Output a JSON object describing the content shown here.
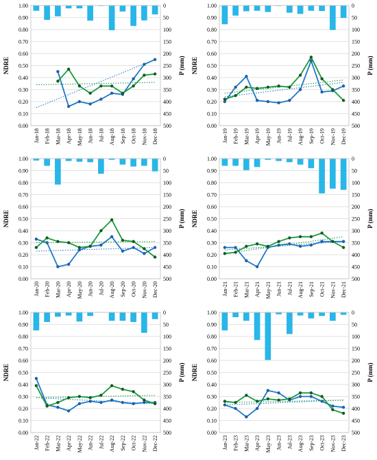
{
  "chart_data": [
    {
      "type": "bar+line",
      "categories": [
        "Jan-18",
        "Feb-18",
        "Mar-18",
        "Apr-18",
        "May-18",
        "Jun-18",
        "Jul-18",
        "Aug-18",
        "Sep-18",
        "Oct-18",
        "Nov-18",
        "Dec-18"
      ],
      "ylabel": "NDRE",
      "ylim": [
        0,
        1
      ],
      "yticks": [
        "0.00",
        "0.10",
        "0.20",
        "0.30",
        "0.40",
        "0.50",
        "0.60",
        "0.70",
        "0.80",
        "0.90",
        "1.00"
      ],
      "y2label": "P (mm)",
      "y2lim": [
        0,
        500
      ],
      "y2_inverted": true,
      "y2ticks": [
        "0",
        "50",
        "100",
        "150",
        "200",
        "250",
        "300",
        "350",
        "400",
        "450",
        "500"
      ],
      "precip_color": "#29b6e8",
      "precipitation": [
        22,
        60,
        45,
        12,
        12,
        63,
        2,
        103,
        25,
        85,
        62,
        37
      ],
      "series": [
        {
          "color": "#1f77c8",
          "values": [
            null,
            null,
            0.45,
            0.16,
            0.2,
            0.18,
            0.22,
            0.27,
            0.26,
            0.39,
            0.51,
            0.55
          ],
          "trend": [
            0.15,
            0.55
          ]
        },
        {
          "color": "#1a9a3a",
          "values": [
            null,
            null,
            0.37,
            0.47,
            0.33,
            0.27,
            0.33,
            0.33,
            0.27,
            0.33,
            0.42,
            0.43
          ],
          "trend": [
            0.34,
            0.36
          ]
        }
      ]
    },
    {
      "type": "bar+line",
      "categories": [
        "Jan-19",
        "Feb-19",
        "Mar-19",
        "Apr-19",
        "May-19",
        "Jun-19",
        "Jul-19",
        "Aug-19",
        "Sep-19",
        "Oct-19",
        "Nov-19",
        "Dec-19"
      ],
      "ylabel": "NDRE",
      "ylim": [
        0,
        1
      ],
      "yticks": [
        "0.00",
        "0.10",
        "0.20",
        "0.30",
        "0.40",
        "0.50",
        "0.60",
        "0.70",
        "0.80",
        "0.90",
        "1.00"
      ],
      "y2label": "P (mm)",
      "y2lim": [
        0,
        500
      ],
      "y2_inverted": true,
      "y2ticks": [
        "0",
        "50",
        "100",
        "150",
        "200",
        "250",
        "300",
        "350",
        "400",
        "450",
        "500"
      ],
      "precip_color": "#29b6e8",
      "precipitation": [
        78,
        42,
        24,
        22,
        27,
        2,
        30,
        35,
        22,
        23,
        102,
        52
      ],
      "series": [
        {
          "color": "#1f77c8",
          "values": [
            0.2,
            0.32,
            0.41,
            0.21,
            0.2,
            0.19,
            0.21,
            0.3,
            0.54,
            0.28,
            0.29,
            0.33
          ],
          "trend": [
            0.24,
            0.36
          ]
        },
        {
          "color": "#1a9a3a",
          "values": [
            0.22,
            0.25,
            0.32,
            0.31,
            0.32,
            0.33,
            0.32,
            0.42,
            0.57,
            0.39,
            0.3,
            0.21
          ],
          "trend": [
            0.27,
            0.38
          ]
        }
      ]
    },
    {
      "type": "bar+line",
      "categories": [
        "Jan-20",
        "Feb-20",
        "Mar-20",
        "Apr-20",
        "May-20",
        "Jun-20",
        "Jul-20",
        "Aug-20",
        "Sep-20",
        "Oct-20",
        "Nov-20",
        "Dec-20"
      ],
      "ylabel": "NDRE",
      "ylim": [
        0,
        1
      ],
      "yticks": [
        "0.00",
        "0.10",
        "0.20",
        "0.30",
        "0.40",
        "0.50",
        "0.60",
        "0.70",
        "0.80",
        "0.90",
        "1.00"
      ],
      "y2label": "P (mm)",
      "y2lim": [
        0,
        500
      ],
      "y2_inverted": true,
      "y2ticks": [
        "0",
        "50",
        "100",
        "150",
        "200",
        "250",
        "300",
        "350",
        "400",
        "450",
        "500"
      ],
      "precip_color": "#29b6e8",
      "precipitation": [
        8,
        30,
        108,
        10,
        13,
        15,
        63,
        5,
        25,
        33,
        30,
        53
      ],
      "series": [
        {
          "color": "#1f77c8",
          "values": [
            0.33,
            0.3,
            0.1,
            0.12,
            0.24,
            0.27,
            0.28,
            0.35,
            0.23,
            0.26,
            0.21,
            0.26
          ],
          "trend": [
            0.23,
            0.26
          ]
        },
        {
          "color": "#1a9a3a",
          "values": [
            0.26,
            0.34,
            0.31,
            0.3,
            0.26,
            0.27,
            0.4,
            0.49,
            0.32,
            0.31,
            0.25,
            0.18
          ],
          "trend": [
            0.3,
            0.31
          ]
        }
      ]
    },
    {
      "type": "bar+line",
      "categories": [
        "Jan-21",
        "Feb-21",
        "Mar-21",
        "Apr-21",
        "May-21",
        "Jun-21",
        "Jul-21",
        "Aug-21",
        "Sep-21",
        "Oct-21",
        "Nov-21",
        "Dec-21"
      ],
      "ylabel": "NDRE",
      "ylim": [
        0,
        1
      ],
      "yticks": [
        "0.00",
        "0.10",
        "0.20",
        "0.30",
        "0.40",
        "0.50",
        "0.60",
        "0.70",
        "0.80",
        "0.90",
        "1.00"
      ],
      "y2label": "P (mm)",
      "y2lim": [
        0,
        500
      ],
      "y2_inverted": true,
      "y2ticks": [
        "0",
        "50",
        "100",
        "150",
        "200",
        "250",
        "300",
        "350",
        "400",
        "450",
        "500"
      ],
      "precip_color": "#29b6e8",
      "precipitation": [
        30,
        30,
        48,
        35,
        5,
        10,
        15,
        25,
        40,
        145,
        125,
        130
      ],
      "series": [
        {
          "color": "#1f77c8",
          "values": [
            0.26,
            0.26,
            0.15,
            0.1,
            0.26,
            0.28,
            0.29,
            0.27,
            0.28,
            0.31,
            0.31,
            0.31
          ],
          "trend": [
            0.24,
            0.31
          ]
        },
        {
          "color": "#1a9a3a",
          "values": [
            0.21,
            0.22,
            0.27,
            0.29,
            0.27,
            0.31,
            0.34,
            0.35,
            0.35,
            0.38,
            0.31,
            0.26
          ],
          "trend": [
            0.21,
            0.35
          ]
        }
      ]
    },
    {
      "type": "bar+line",
      "categories": [
        "Jan-22",
        "Feb-22",
        "Mar-22",
        "Apr-22",
        "May-22",
        "Jun-22",
        "Jul-22",
        "Aug-22",
        "Sep-22",
        "Oct-22",
        "Nov-22",
        "Dec-22"
      ],
      "ylabel": "NDRE",
      "ylim": [
        0,
        1
      ],
      "yticks": [
        "0.00",
        "0.10",
        "0.20",
        "0.30",
        "0.40",
        "0.50",
        "0.60",
        "0.70",
        "0.80",
        "0.90",
        "1.00"
      ],
      "y2label": "P (mm)",
      "y2lim": [
        0,
        500
      ],
      "y2_inverted": true,
      "y2ticks": [
        "0",
        "50",
        "100",
        "150",
        "200",
        "250",
        "300",
        "350",
        "400",
        "450",
        "500"
      ],
      "precip_color": "#29b6e8",
      "precipitation": [
        75,
        40,
        18,
        13,
        38,
        15,
        0,
        35,
        35,
        40,
        85,
        28
      ],
      "series": [
        {
          "color": "#1f77c8",
          "values": [
            0.45,
            0.23,
            0.21,
            0.18,
            0.24,
            0.26,
            0.25,
            0.27,
            0.25,
            0.24,
            0.25,
            0.25
          ],
          "trend": [
            0.29,
            0.24
          ]
        },
        {
          "color": "#1a9a3a",
          "values": [
            0.39,
            0.22,
            0.25,
            0.29,
            0.3,
            0.29,
            0.31,
            0.39,
            0.36,
            0.34,
            0.27,
            0.24
          ],
          "trend": [
            0.29,
            0.31
          ]
        }
      ]
    },
    {
      "type": "bar+line",
      "categories": [
        "Jan-23",
        "Feb-23",
        "Mar-23",
        "Apr-23",
        "May-23",
        "Jun-23",
        "Jul-23",
        "Aug-23",
        "Sep-23",
        "Oct-23",
        "Nov-23",
        "Dec-23"
      ],
      "ylabel": "NDRE",
      "ylim": [
        0,
        1
      ],
      "yticks": [
        "0.00",
        "0.10",
        "0.20",
        "0.30",
        "0.40",
        "0.50",
        "0.60",
        "0.70",
        "0.80",
        "0.90",
        "1.00"
      ],
      "y2label": "P (mm)",
      "y2lim": [
        0,
        500
      ],
      "y2_inverted": true,
      "y2ticks": [
        "0",
        "50",
        "100",
        "150",
        "200",
        "250",
        "300",
        "350",
        "400",
        "450",
        "500"
      ],
      "precip_color": "#29b6e8",
      "precipitation": [
        75,
        20,
        35,
        115,
        198,
        8,
        90,
        13,
        25,
        15,
        35,
        10
      ],
      "series": [
        {
          "color": "#1f77c8",
          "values": [
            0.23,
            0.2,
            0.13,
            0.2,
            0.35,
            0.33,
            0.27,
            0.3,
            0.3,
            0.26,
            0.22,
            0.21
          ],
          "trend": [
            0.23,
            0.27
          ]
        },
        {
          "color": "#1a9a3a",
          "values": [
            0.26,
            0.25,
            0.31,
            0.26,
            0.28,
            0.27,
            0.28,
            0.33,
            0.33,
            0.3,
            0.19,
            0.16
          ],
          "trend": [
            0.25,
            0.27
          ]
        }
      ]
    }
  ]
}
